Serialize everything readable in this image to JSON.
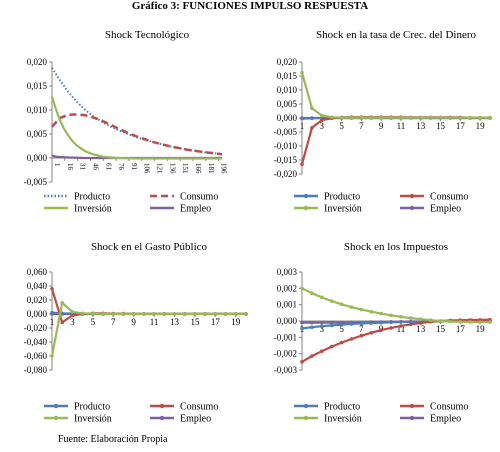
{
  "figure": {
    "title": "Gráfico 3: FUNCIONES IMPULSO RESPUESTA",
    "source": "Fuente: Elaboración Propia"
  },
  "colors": {
    "producto": "#4A7EBB",
    "consumo": "#BE4B48",
    "inversion": "#98B954",
    "empleo": "#7D60A0"
  },
  "chart_data": [
    {
      "type": "line",
      "title": "Shock Tecnológico",
      "xlabel": "",
      "ylabel": "",
      "ylim": [
        -0.005,
        0.02
      ],
      "yticks": [
        "0,020",
        "0,015",
        "0,010",
        "0,005",
        "0,000",
        "-0,005"
      ],
      "ytick_values": [
        0.02,
        0.015,
        0.01,
        0.005,
        0.0,
        -0.005
      ],
      "xlim": [
        1,
        200
      ],
      "xticks": [
        1,
        16,
        31,
        46,
        61,
        76,
        91,
        106,
        121,
        136,
        151,
        166,
        181,
        196
      ],
      "xtick_rotation": "vertical",
      "legend": {
        "position": "bottom",
        "columns": 2
      },
      "series": [
        {
          "name": "Producto",
          "style": "dotted",
          "x": [
            1,
            10,
            20,
            30,
            40,
            50,
            60,
            70,
            80,
            90,
            100,
            120,
            140,
            160,
            180,
            200
          ],
          "values": [
            0.0188,
            0.0163,
            0.0138,
            0.0117,
            0.01,
            0.0086,
            0.0075,
            0.0065,
            0.0057,
            0.005,
            0.0043,
            0.0033,
            0.0024,
            0.0017,
            0.0012,
            0.0008
          ]
        },
        {
          "name": "Consumo",
          "style": "dashed",
          "x": [
            1,
            10,
            20,
            30,
            40,
            50,
            60,
            70,
            80,
            90,
            100,
            120,
            140,
            160,
            180,
            200
          ],
          "values": [
            0.0065,
            0.0083,
            0.009,
            0.0091,
            0.0089,
            0.0084,
            0.0077,
            0.0069,
            0.006,
            0.0052,
            0.0045,
            0.0033,
            0.0024,
            0.0017,
            0.0012,
            0.0008
          ]
        },
        {
          "name": "Inversión",
          "style": "solid",
          "x": [
            1,
            5,
            10,
            15,
            20,
            25,
            30,
            40,
            50,
            60,
            70,
            80,
            100,
            140,
            200
          ],
          "values": [
            0.0128,
            0.0105,
            0.008,
            0.0061,
            0.0047,
            0.0035,
            0.0026,
            0.0014,
            0.0007,
            0.0003,
            0.0001,
            0.0,
            -0.0001,
            -0.0001,
            -0.0001
          ]
        },
        {
          "name": "Empleo",
          "style": "solid",
          "x": [
            1,
            5,
            10,
            20,
            40,
            60,
            100,
            150,
            200
          ],
          "values": [
            0.0005,
            0.0003,
            0.0002,
            0.0001,
            0.0,
            0.0,
            0.0,
            0.0,
            0.0
          ]
        }
      ]
    },
    {
      "type": "line",
      "title": "Shock en la tasa de Crec. del Dinero",
      "xlabel": "",
      "ylabel": "",
      "ylim": [
        -0.02,
        0.02
      ],
      "yticks": [
        "0,020",
        "0,015",
        "0,010",
        "0,005",
        "0,000",
        "-0,005",
        "-0,010",
        "-0,015",
        "-0,020"
      ],
      "ytick_values": [
        0.02,
        0.015,
        0.01,
        0.005,
        0.0,
        -0.005,
        -0.01,
        -0.015,
        -0.02
      ],
      "xlim": [
        1,
        20
      ],
      "xticks": [
        1,
        3,
        5,
        7,
        9,
        11,
        13,
        15,
        17,
        19
      ],
      "legend": {
        "position": "bottom",
        "columns": 2
      },
      "series": [
        {
          "name": "Producto",
          "x": [
            1,
            2,
            3,
            4,
            5,
            6,
            7,
            8,
            9,
            10,
            11,
            12,
            13,
            14,
            15,
            16,
            17,
            18,
            19,
            20
          ],
          "values": [
            -0.0002,
            -0.0001,
            0,
            0,
            0,
            0,
            0,
            0,
            0,
            0,
            0,
            0,
            0,
            0,
            0,
            0,
            0,
            0,
            0,
            0
          ]
        },
        {
          "name": "Consumo",
          "x": [
            1,
            2,
            3,
            4,
            5,
            6,
            7,
            8,
            9,
            10,
            11,
            12,
            13,
            14,
            15,
            16,
            17,
            18,
            19,
            20
          ],
          "values": [
            -0.0165,
            -0.0035,
            -0.0008,
            -0.0001,
            0.0002,
            0.0003,
            0.0003,
            0.0003,
            0.0003,
            0.0003,
            0.0003,
            0.0002,
            0.0002,
            0.0002,
            0.0002,
            0.0002,
            0.0002,
            0.0001,
            0.0001,
            0.0001
          ]
        },
        {
          "name": "Inversión",
          "x": [
            1,
            2,
            3,
            4,
            5,
            6,
            7,
            8,
            9,
            10,
            11,
            12,
            13,
            14,
            15,
            16,
            17,
            18,
            19,
            20
          ],
          "values": [
            0.0162,
            0.0035,
            0.0009,
            0.0003,
            0.0001,
            0.0001,
            0.0001,
            0.0001,
            0.0001,
            0.0001,
            0.0001,
            0.0001,
            0.0001,
            0.0001,
            0.0001,
            0.0001,
            0.0001,
            0.0001,
            0.0001,
            0.0001
          ]
        },
        {
          "name": "Empleo",
          "x": [
            1,
            2,
            3,
            4,
            5,
            6,
            7,
            8,
            9,
            10,
            11,
            12,
            13,
            14,
            15,
            16,
            17,
            18,
            19,
            20
          ],
          "values": [
            0,
            0,
            0,
            0,
            0,
            0,
            0,
            0,
            0,
            0,
            0,
            0,
            0,
            0,
            0,
            0,
            0,
            0,
            0,
            0
          ]
        }
      ]
    },
    {
      "type": "line",
      "title": "Shock en el Gasto Público",
      "xlabel": "",
      "ylabel": "",
      "ylim": [
        -0.08,
        0.06
      ],
      "yticks": [
        "0,060",
        "0,040",
        "0,020",
        "0,000",
        "-0,020",
        "-0,040",
        "-0,060",
        "-0,080"
      ],
      "ytick_values": [
        0.06,
        0.04,
        0.02,
        0.0,
        -0.02,
        -0.04,
        -0.06,
        -0.08
      ],
      "xlim": [
        1,
        20
      ],
      "xticks": [
        1,
        3,
        5,
        7,
        9,
        11,
        13,
        15,
        17,
        19
      ],
      "legend": {
        "position": "bottom",
        "columns": 2
      },
      "series": [
        {
          "name": "Producto",
          "x": [
            1,
            2,
            3,
            4,
            5,
            6,
            7,
            8,
            9,
            10,
            11,
            12,
            13,
            14,
            15,
            16,
            17,
            18,
            19,
            20
          ],
          "values": [
            0.002,
            0.001,
            0.0005,
            0.0003,
            0.0002,
            0.0001,
            0.0001,
            0.0001,
            0.0001,
            0.0001,
            0.0001,
            0.0001,
            0.0001,
            0.0001,
            0.0001,
            0.0001,
            0.0001,
            0.0001,
            0.0001,
            0.0001
          ]
        },
        {
          "name": "Consumo",
          "x": [
            1,
            2,
            3,
            4,
            5,
            6,
            7,
            8,
            9,
            10,
            11,
            12,
            13,
            14,
            15,
            16,
            17,
            18,
            19,
            20
          ],
          "values": [
            0.036,
            -0.012,
            -0.002,
            0.0,
            0.001,
            0.001,
            0.0005,
            0.0005,
            0.0003,
            0.0003,
            0.0002,
            0.0002,
            0.0002,
            0.0001,
            0.0001,
            0.0001,
            0.0001,
            0.0001,
            0.0001,
            0.0001
          ]
        },
        {
          "name": "Inversión",
          "x": [
            1,
            2,
            3,
            4,
            5,
            6,
            7,
            8,
            9,
            10,
            11,
            12,
            13,
            14,
            15,
            16,
            17,
            18,
            19,
            20
          ],
          "values": [
            -0.06,
            0.016,
            0.003,
            0.001,
            0.0005,
            0.0003,
            0.0002,
            0.0001,
            0.0001,
            0.0001,
            0.0001,
            0.0001,
            0.0001,
            0.0001,
            0.0001,
            0.0001,
            0.0001,
            0.0001,
            0.0001,
            0.0001
          ]
        },
        {
          "name": "Empleo",
          "x": [
            1,
            2,
            3,
            4,
            5,
            6,
            7,
            8,
            9,
            10,
            11,
            12,
            13,
            14,
            15,
            16,
            17,
            18,
            19,
            20
          ],
          "values": [
            0,
            0,
            0,
            0,
            0,
            0,
            0,
            0,
            0,
            0,
            0,
            0,
            0,
            0,
            0,
            0,
            0,
            0,
            0,
            0
          ]
        }
      ]
    },
    {
      "type": "line",
      "title": "Shock en los Impuestos",
      "xlabel": "",
      "ylabel": "",
      "ylim": [
        -0.003,
        0.003
      ],
      "yticks": [
        "0,003",
        "0,002",
        "0,001",
        "0,000",
        "-0,001",
        "-0,002",
        "-0,003"
      ],
      "ytick_values": [
        0.003,
        0.002,
        0.001,
        0.0,
        -0.001,
        -0.002,
        -0.003
      ],
      "xlim": [
        1,
        20
      ],
      "xticks": [
        1,
        3,
        5,
        7,
        9,
        11,
        13,
        15,
        17,
        19
      ],
      "legend": {
        "position": "bottom",
        "columns": 2
      },
      "series": [
        {
          "name": "Producto",
          "x": [
            1,
            2,
            3,
            4,
            5,
            6,
            7,
            8,
            9,
            10,
            11,
            12,
            13,
            14,
            15,
            16,
            17,
            18,
            19,
            20
          ],
          "values": [
            -0.00045,
            -0.00038,
            -0.00032,
            -0.00027,
            -0.00022,
            -0.00018,
            -0.00015,
            -0.00012,
            -0.0001,
            -8e-05,
            -6e-05,
            -5e-05,
            -4e-05,
            -3e-05,
            -2e-05,
            -1e-05,
            0.0,
            0.0,
            0.0,
            0.0
          ]
        },
        {
          "name": "Consumo",
          "x": [
            1,
            2,
            3,
            4,
            5,
            6,
            7,
            8,
            9,
            10,
            11,
            12,
            13,
            14,
            15,
            16,
            17,
            18,
            19,
            20
          ],
          "values": [
            -0.0025,
            -0.00215,
            -0.00185,
            -0.00157,
            -0.00132,
            -0.0011,
            -0.0009,
            -0.00072,
            -0.00056,
            -0.00042,
            -0.0003,
            -0.0002,
            -0.00012,
            -5e-05,
            0.0,
            3e-05,
            5e-05,
            6e-05,
            7e-05,
            8e-05
          ]
        },
        {
          "name": "Inversión",
          "x": [
            1,
            2,
            3,
            4,
            5,
            6,
            7,
            8,
            9,
            10,
            11,
            12,
            13,
            14,
            15,
            16,
            17,
            18,
            19,
            20
          ],
          "values": [
            0.002,
            0.0017,
            0.00145,
            0.00122,
            0.00102,
            0.00085,
            0.0007,
            0.00057,
            0.00045,
            0.00035,
            0.00026,
            0.00018,
            0.00011,
            5e-05,
            0.0,
            -3e-05,
            -5e-05,
            -6e-05,
            -7e-05,
            -7e-05
          ]
        },
        {
          "name": "Empleo",
          "x": [
            1,
            2,
            3,
            4,
            5,
            6,
            7,
            8,
            9,
            10,
            11,
            12,
            13,
            14,
            15,
            16,
            17,
            18,
            19,
            20
          ],
          "values": [
            -0.0001,
            -0.0001,
            -0.0001,
            -0.0001,
            -0.0001,
            -9e-05,
            -8e-05,
            -7e-05,
            -6e-05,
            -5e-05,
            -4e-05,
            -3e-05,
            -3e-05,
            -2e-05,
            -2e-05,
            -1e-05,
            -1e-05,
            0,
            0,
            0
          ]
        }
      ]
    }
  ]
}
